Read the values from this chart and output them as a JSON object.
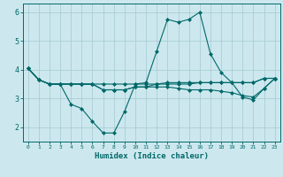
{
  "title": "",
  "xlabel": "Humidex (Indice chaleur)",
  "ylabel": "",
  "bg_color": "#cce8ee",
  "grid_color": "#aacdd6",
  "line_color": "#006868",
  "xlim": [
    -0.5,
    23.5
  ],
  "ylim": [
    1.5,
    6.3
  ],
  "xticks": [
    0,
    1,
    2,
    3,
    4,
    5,
    6,
    7,
    8,
    9,
    10,
    11,
    12,
    13,
    14,
    15,
    16,
    17,
    18,
    19,
    20,
    21,
    22,
    23
  ],
  "yticks": [
    2,
    3,
    4,
    5,
    6
  ],
  "series": [
    [
      4.05,
      3.65,
      3.5,
      3.5,
      2.8,
      2.65,
      2.2,
      1.8,
      1.8,
      2.55,
      3.5,
      3.55,
      4.65,
      5.75,
      5.65,
      5.75,
      6.0,
      4.55,
      3.9,
      3.55,
      3.05,
      2.95,
      3.35,
      3.7
    ],
    [
      4.05,
      3.65,
      3.5,
      3.5,
      3.5,
      3.5,
      3.5,
      3.5,
      3.5,
      3.5,
      3.5,
      3.5,
      3.5,
      3.55,
      3.55,
      3.55,
      3.55,
      3.55,
      3.55,
      3.55,
      3.55,
      3.55,
      3.7,
      3.7
    ],
    [
      4.05,
      3.65,
      3.5,
      3.5,
      3.5,
      3.5,
      3.5,
      3.3,
      3.3,
      3.3,
      3.4,
      3.4,
      3.4,
      3.4,
      3.35,
      3.3,
      3.3,
      3.3,
      3.25,
      3.2,
      3.1,
      3.05,
      3.35,
      3.7
    ],
    [
      4.05,
      3.65,
      3.5,
      3.5,
      3.5,
      3.5,
      3.5,
      3.3,
      3.3,
      3.3,
      3.4,
      3.4,
      3.5,
      3.5,
      3.5,
      3.5,
      3.55,
      3.55,
      3.55,
      3.55,
      3.55,
      3.55,
      3.7,
      3.7
    ]
  ]
}
